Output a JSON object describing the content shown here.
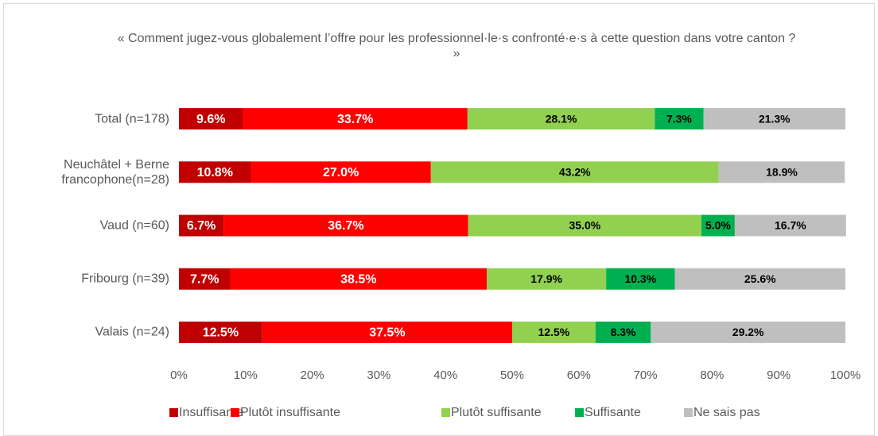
{
  "chart_data": {
    "type": "stacked-bar-horizontal",
    "title": "« Comment jugez-vous globalement l’offre pour les professionnel·le·s confronté·e·s à cette question dans votre canton ? »",
    "categories": [
      "Total (n=178)",
      "Neuchâtel + Berne francophone(n=28)",
      "Vaud (n=60)",
      "Fribourg (n=39)",
      "Valais (n=24)"
    ],
    "series": [
      {
        "name": "Insuffisante",
        "color": "#c00000",
        "values": [
          9.6,
          10.8,
          6.7,
          7.7,
          12.5
        ],
        "value_labels": [
          "9.6%",
          "10.8%",
          "6.7%",
          "7.7%",
          "12.5%"
        ]
      },
      {
        "name": "Plutôt insuffisante",
        "color": "#ff0000",
        "values": [
          33.7,
          27.0,
          36.7,
          38.5,
          37.5
        ],
        "value_labels": [
          "33.7%",
          "27.0%",
          "36.7%",
          "38.5%",
          "37.5%"
        ]
      },
      {
        "name": "Plutôt suffisante",
        "color": "#92d050",
        "values": [
          28.1,
          43.2,
          35.0,
          17.9,
          12.5
        ],
        "value_labels": [
          "28.1%",
          "43.2%",
          "35.0%",
          "17.9%",
          "12.5%"
        ]
      },
      {
        "name": "Suffisante",
        "color": "#00b050",
        "values": [
          7.3,
          null,
          5.0,
          10.3,
          8.3
        ],
        "value_labels": [
          "7.3%",
          null,
          "5.0%",
          "10.3%",
          "8.3%"
        ]
      },
      {
        "name": "Ne sais pas",
        "color": "#bfbfbf",
        "values": [
          21.3,
          18.9,
          16.7,
          25.6,
          29.2
        ],
        "value_labels": [
          "21.3%",
          "18.9%",
          "16.7%",
          "25.6%",
          "29.2%"
        ]
      }
    ],
    "xlim": [
      0,
      100
    ],
    "xticks": [
      {
        "value": 0,
        "label": "0%"
      },
      {
        "value": 10,
        "label": "10%"
      },
      {
        "value": 20,
        "label": "20%"
      },
      {
        "value": 30,
        "label": "30%"
      },
      {
        "value": 40,
        "label": "40%"
      },
      {
        "value": 50,
        "label": "50%"
      },
      {
        "value": 60,
        "label": "60%"
      },
      {
        "value": 70,
        "label": "70%"
      },
      {
        "value": 80,
        "label": "80%"
      },
      {
        "value": 90,
        "label": "90%"
      },
      {
        "value": 100,
        "label": "100%"
      }
    ],
    "legend": "bottom"
  }
}
